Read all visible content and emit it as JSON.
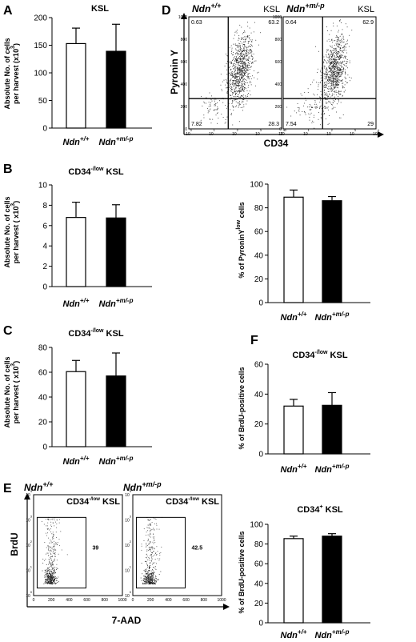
{
  "chart_data": [
    {
      "id": "A",
      "type": "bar",
      "panel_label": "A",
      "title": "KSL",
      "ylabel_lines": [
        "Absolute No. of cells",
        "per harvest (x10",
        "3",
        ")"
      ],
      "categories": [
        {
          "base": "Ndn",
          "sup": "+/+"
        },
        {
          "base": "Ndn",
          "sup": "+m/-p"
        }
      ],
      "values": [
        153,
        139
      ],
      "errors": [
        28,
        49
      ],
      "bar_colors": [
        "#ffffff",
        "#000000"
      ],
      "ylim": [
        0,
        200
      ],
      "yticks": [
        0,
        50,
        100,
        150,
        200
      ]
    },
    {
      "id": "B",
      "type": "bar",
      "panel_label": "B",
      "title": {
        "base": "CD34",
        "sup": "-/low",
        "rest": " KSL"
      },
      "ylabel_lines": [
        "Absolute No. of cells",
        "per harvest ( x10",
        "3",
        ")"
      ],
      "categories": [
        {
          "base": "Ndn",
          "sup": "+/+"
        },
        {
          "base": "Ndn",
          "sup": "+m/-p"
        }
      ],
      "values": [
        6.8,
        6.75
      ],
      "errors": [
        1.5,
        1.3
      ],
      "bar_colors": [
        "#ffffff",
        "#000000"
      ],
      "ylim": [
        0,
        10
      ],
      "yticks": [
        0,
        2,
        4,
        6,
        8,
        10
      ]
    },
    {
      "id": "D2",
      "type": "bar",
      "ylabel": {
        "base": "% of PyroninY",
        "sup": "low",
        "rest": " cells"
      },
      "categories": [
        {
          "base": "Ndn",
          "sup": "+/+"
        },
        {
          "base": "Ndn",
          "sup": "+m/-p"
        }
      ],
      "values": [
        89,
        86
      ],
      "errors": [
        6,
        3.5
      ],
      "bar_colors": [
        "#ffffff",
        "#000000"
      ],
      "ylim": [
        0,
        100
      ],
      "yticks": [
        0,
        20,
        40,
        60,
        80,
        100
      ]
    },
    {
      "id": "C",
      "type": "bar",
      "panel_label": "C",
      "title": {
        "base": "CD34",
        "sup": "-/low",
        "rest": " KSL"
      },
      "ylabel_lines": [
        "Absolute No. of cells",
        "per harvest ( x10",
        "3",
        ")"
      ],
      "categories": [
        {
          "base": "Ndn",
          "sup": "+/+"
        },
        {
          "base": "Ndn",
          "sup": "+m/-p"
        }
      ],
      "values": [
        60.5,
        57
      ],
      "errors": [
        9,
        18.5
      ],
      "bar_colors": [
        "#ffffff",
        "#000000"
      ],
      "ylim": [
        0,
        80
      ],
      "yticks": [
        0,
        20,
        40,
        60,
        80
      ]
    },
    {
      "id": "F1",
      "type": "bar",
      "panel_label": "F",
      "title": {
        "base": "CD34",
        "sup": "-/low",
        "rest": " KSL"
      },
      "ylabel": {
        "base": "% of BrdU-positive cells",
        "sup": "",
        "rest": ""
      },
      "categories": [
        {
          "base": "Ndn",
          "sup": "+/+"
        },
        {
          "base": "Ndn",
          "sup": "+m/-p"
        }
      ],
      "values": [
        32,
        32.5
      ],
      "errors": [
        4.5,
        8.5
      ],
      "bar_colors": [
        "#ffffff",
        "#000000"
      ],
      "ylim": [
        0,
        60
      ],
      "yticks": [
        0,
        20,
        40,
        60
      ]
    },
    {
      "id": "F2",
      "type": "bar",
      "title": {
        "base": "CD34",
        "sup": "+",
        "rest": " KSL"
      },
      "ylabel": {
        "base": "% of BrdU-positive cells",
        "sup": "",
        "rest": ""
      },
      "categories": [
        {
          "base": "Ndn",
          "sup": "+/+"
        },
        {
          "base": "Ndn",
          "sup": "+m/-p"
        }
      ],
      "values": [
        85.5,
        88
      ],
      "errors": [
        2.5,
        2.5
      ],
      "bar_colors": [
        "#ffffff",
        "#000000"
      ],
      "ylim": [
        0,
        100
      ],
      "yticks": [
        0,
        20,
        40,
        60,
        80,
        100
      ]
    },
    {
      "id": "D",
      "type": "scatter",
      "panel_label": "D",
      "xlabel": "CD34",
      "ylabel": "Pyronin Y",
      "x_scale": "log",
      "x_range": [
        1,
        10000
      ],
      "y_range": [
        0,
        1000
      ],
      "yticks": [
        0,
        200,
        400,
        600,
        800,
        1000
      ],
      "xticks": [
        {
          "base": "10",
          "sup": "0"
        },
        {
          "base": "10",
          "sup": "1"
        },
        {
          "base": "10",
          "sup": "2"
        },
        {
          "base": "10",
          "sup": "3"
        },
        {
          "base": "10",
          "sup": "4"
        }
      ],
      "gate": {
        "x": 50,
        "y": 270
      },
      "plots": [
        {
          "title": {
            "base": "Ndn",
            "sup": "+/+"
          },
          "label": "KSL",
          "quadrants": {
            "ul": "0.63",
            "ur": "63.2",
            "ll": "7.82",
            "lr": "28.3"
          }
        },
        {
          "title": {
            "base": "Ndn",
            "sup": "+m/-p"
          },
          "label": "KSL",
          "quadrants": {
            "ul": "0.64",
            "ur": "62.9",
            "ll": "7.54",
            "lr": "29"
          }
        }
      ]
    },
    {
      "id": "E",
      "type": "scatter",
      "panel_label": "E",
      "xlabel": "7-AAD",
      "ylabel": "BrdU",
      "x_range": [
        0,
        1000
      ],
      "xticks": [
        "0",
        "200",
        "400",
        "600",
        "800",
        "1000"
      ],
      "y_scale": "log",
      "y_range": [
        1,
        10000
      ],
      "yticks": [
        {
          "base": "10",
          "sup": "0"
        },
        {
          "base": "10",
          "sup": "1"
        },
        {
          "base": "10",
          "sup": "2"
        },
        {
          "base": "10",
          "sup": "3"
        },
        {
          "base": "10",
          "sup": "4"
        }
      ],
      "gate": {
        "x0": 40,
        "x1": 590,
        "y0_log": 0.3,
        "y1_log": 3.1
      },
      "plots": [
        {
          "title": {
            "base": "Ndn",
            "sup": "+/+"
          },
          "label": {
            "base": "CD34",
            "sup": "-/low",
            "rest": " KSL"
          },
          "gate_value": "39"
        },
        {
          "title": {
            "base": "Ndn",
            "sup": "+m/-p"
          },
          "label": {
            "base": "CD34",
            "sup": "-/low",
            "rest": " KSL"
          },
          "gate_value": "42.5"
        }
      ]
    }
  ]
}
